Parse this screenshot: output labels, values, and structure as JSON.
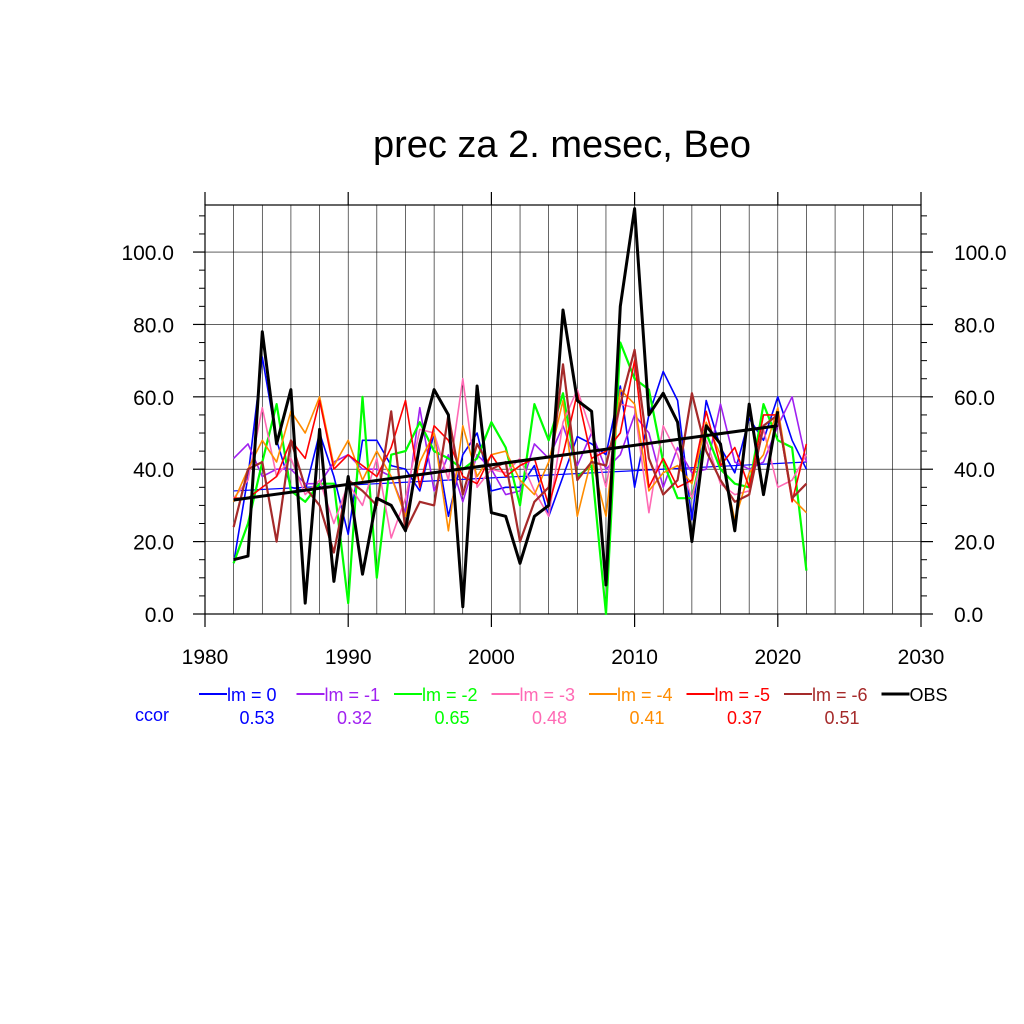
{
  "chart_data": {
    "type": "line",
    "title": "prec za 2. mesec, Beo",
    "xlim": [
      1980,
      2030
    ],
    "ylim": [
      0,
      113
    ],
    "x_ticks": [
      1980,
      1990,
      2000,
      2010,
      2020,
      2030
    ],
    "x_tick_labels": [
      "1980",
      "1990",
      "2000",
      "2010",
      "2020",
      "2030"
    ],
    "y_ticks": [
      0,
      20,
      40,
      60,
      80,
      100
    ],
    "y_tick_labels": [
      "0.0",
      "20.0",
      "40.0",
      "60.0",
      "80.0",
      "100.0"
    ],
    "grid": true,
    "legend_position": "bottom",
    "ccor_label": "ccor",
    "ccor_color": "#0000ff",
    "x": [
      1982,
      1983,
      1984,
      1985,
      1986,
      1987,
      1988,
      1989,
      1990,
      1991,
      1992,
      1993,
      1994,
      1995,
      1996,
      1997,
      1998,
      1999,
      2000,
      2001,
      2002,
      2003,
      2004,
      2005,
      2006,
      2007,
      2008,
      2009,
      2010,
      2011,
      2012,
      2013,
      2014,
      2015,
      2016,
      2017,
      2018,
      2019,
      2020,
      2021,
      2022
    ],
    "series": [
      {
        "name": "lm = 0",
        "ccor": "0.53",
        "color": "#0000ff",
        "width": 1.6,
        "values": [
          14,
          38,
          71,
          48,
          35,
          34,
          50,
          38,
          22,
          48,
          48,
          41,
          40,
          34,
          50,
          27,
          44,
          50,
          34,
          35,
          35,
          41,
          27,
          38,
          49,
          47,
          44,
          63,
          35,
          55,
          67,
          59,
          26,
          59,
          46,
          39,
          54,
          48,
          60,
          48,
          40
        ],
        "trend": [
          1982,
          34,
          2022,
          42
        ]
      },
      {
        "name": "lm = -1",
        "ccor": "0.32",
        "color": "#a020f0",
        "width": 1.6,
        "values": [
          43,
          47,
          38,
          40,
          40,
          36,
          36,
          42,
          44,
          40,
          40,
          38,
          28,
          57,
          34,
          44,
          31,
          44,
          40,
          33,
          34,
          47,
          43,
          52,
          41,
          50,
          40,
          44,
          55,
          50,
          35,
          46,
          39,
          40,
          58,
          42,
          40,
          42,
          52,
          60,
          42
        ]
      },
      {
        "name": "lm = -2",
        "ccor": "0.65",
        "color": "#00ff00",
        "width": 2.2,
        "values": [
          14,
          25,
          42,
          58,
          34,
          31,
          36,
          36,
          3,
          60,
          10,
          44,
          45,
          53,
          45,
          43,
          40,
          43,
          53,
          46,
          30,
          58,
          48,
          61,
          38,
          41,
          0,
          75,
          65,
          62,
          42,
          32,
          32,
          50,
          40,
          36,
          35,
          58,
          48,
          46,
          12
        ]
      },
      {
        "name": "lm = -3",
        "ccor": "0.48",
        "color": "#ff69b4",
        "width": 1.6,
        "values": [
          32,
          37,
          57,
          38,
          43,
          33,
          37,
          25,
          36,
          30,
          43,
          21,
          32,
          51,
          50,
          37,
          65,
          35,
          40,
          39,
          43,
          34,
          27,
          53,
          62,
          50,
          35,
          58,
          57,
          28,
          52,
          44,
          32,
          48,
          36,
          33,
          34,
          51,
          35,
          37,
          44
        ]
      },
      {
        "name": "lm = -4",
        "ccor": "0.41",
        "color": "#ff8c00",
        "width": 1.6,
        "values": [
          31,
          40,
          48,
          42,
          56,
          50,
          60,
          41,
          48,
          37,
          45,
          38,
          27,
          42,
          50,
          23,
          52,
          38,
          44,
          45,
          37,
          33,
          42,
          59,
          27,
          43,
          27,
          62,
          58,
          34,
          39,
          41,
          36,
          53,
          44,
          26,
          39,
          44,
          57,
          32,
          28
        ]
      },
      {
        "name": "lm = -5",
        "ccor": "0.37",
        "color": "#ff0000",
        "width": 1.6,
        "values": [
          32,
          32,
          35,
          38,
          48,
          43,
          59,
          40,
          44,
          41,
          38,
          46,
          59,
          35,
          52,
          48,
          38,
          36,
          44,
          38,
          41,
          43,
          30,
          44,
          61,
          43,
          45,
          50,
          70,
          35,
          43,
          35,
          37,
          56,
          41,
          46,
          35,
          55,
          55,
          31,
          47
        ]
      },
      {
        "name": "lm = -6",
        "ccor": "0.51",
        "color": "#a52a2a",
        "width": 2.2,
        "values": [
          24,
          40,
          42,
          20,
          48,
          35,
          30,
          17,
          37,
          34,
          30,
          56,
          23,
          31,
          30,
          55,
          33,
          47,
          40,
          42,
          20,
          31,
          35,
          69,
          37,
          42,
          41,
          58,
          73,
          43,
          33,
          37,
          61,
          45,
          37,
          31,
          33,
          52,
          55,
          32,
          36
        ]
      },
      {
        "name": "OBS",
        "ccor": "",
        "color": "#000000",
        "width": 3.0,
        "values": [
          15,
          16,
          78,
          47,
          62,
          3,
          51,
          9,
          38,
          11,
          32,
          30,
          23,
          47,
          62,
          55,
          2,
          63,
          28,
          27,
          14,
          27,
          30,
          84,
          59,
          56,
          8,
          85,
          112,
          55,
          61,
          53,
          20,
          52,
          47,
          23,
          58,
          33,
          56,
          null,
          null
        ],
        "trend": [
          1982,
          31.5,
          2020,
          52
        ]
      }
    ]
  }
}
